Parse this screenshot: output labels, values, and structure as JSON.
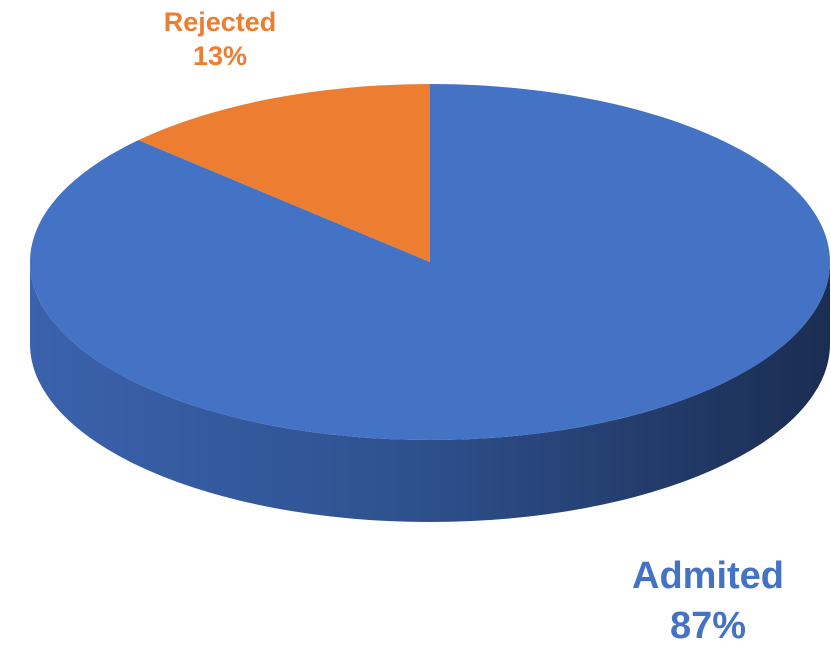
{
  "chart_data": {
    "type": "pie",
    "categories": [
      "Admited",
      "Rejected"
    ],
    "values": [
      87,
      13
    ],
    "value_labels": [
      "87%",
      "13%"
    ],
    "colors": [
      "#4472c4",
      "#ed7d31"
    ]
  }
}
